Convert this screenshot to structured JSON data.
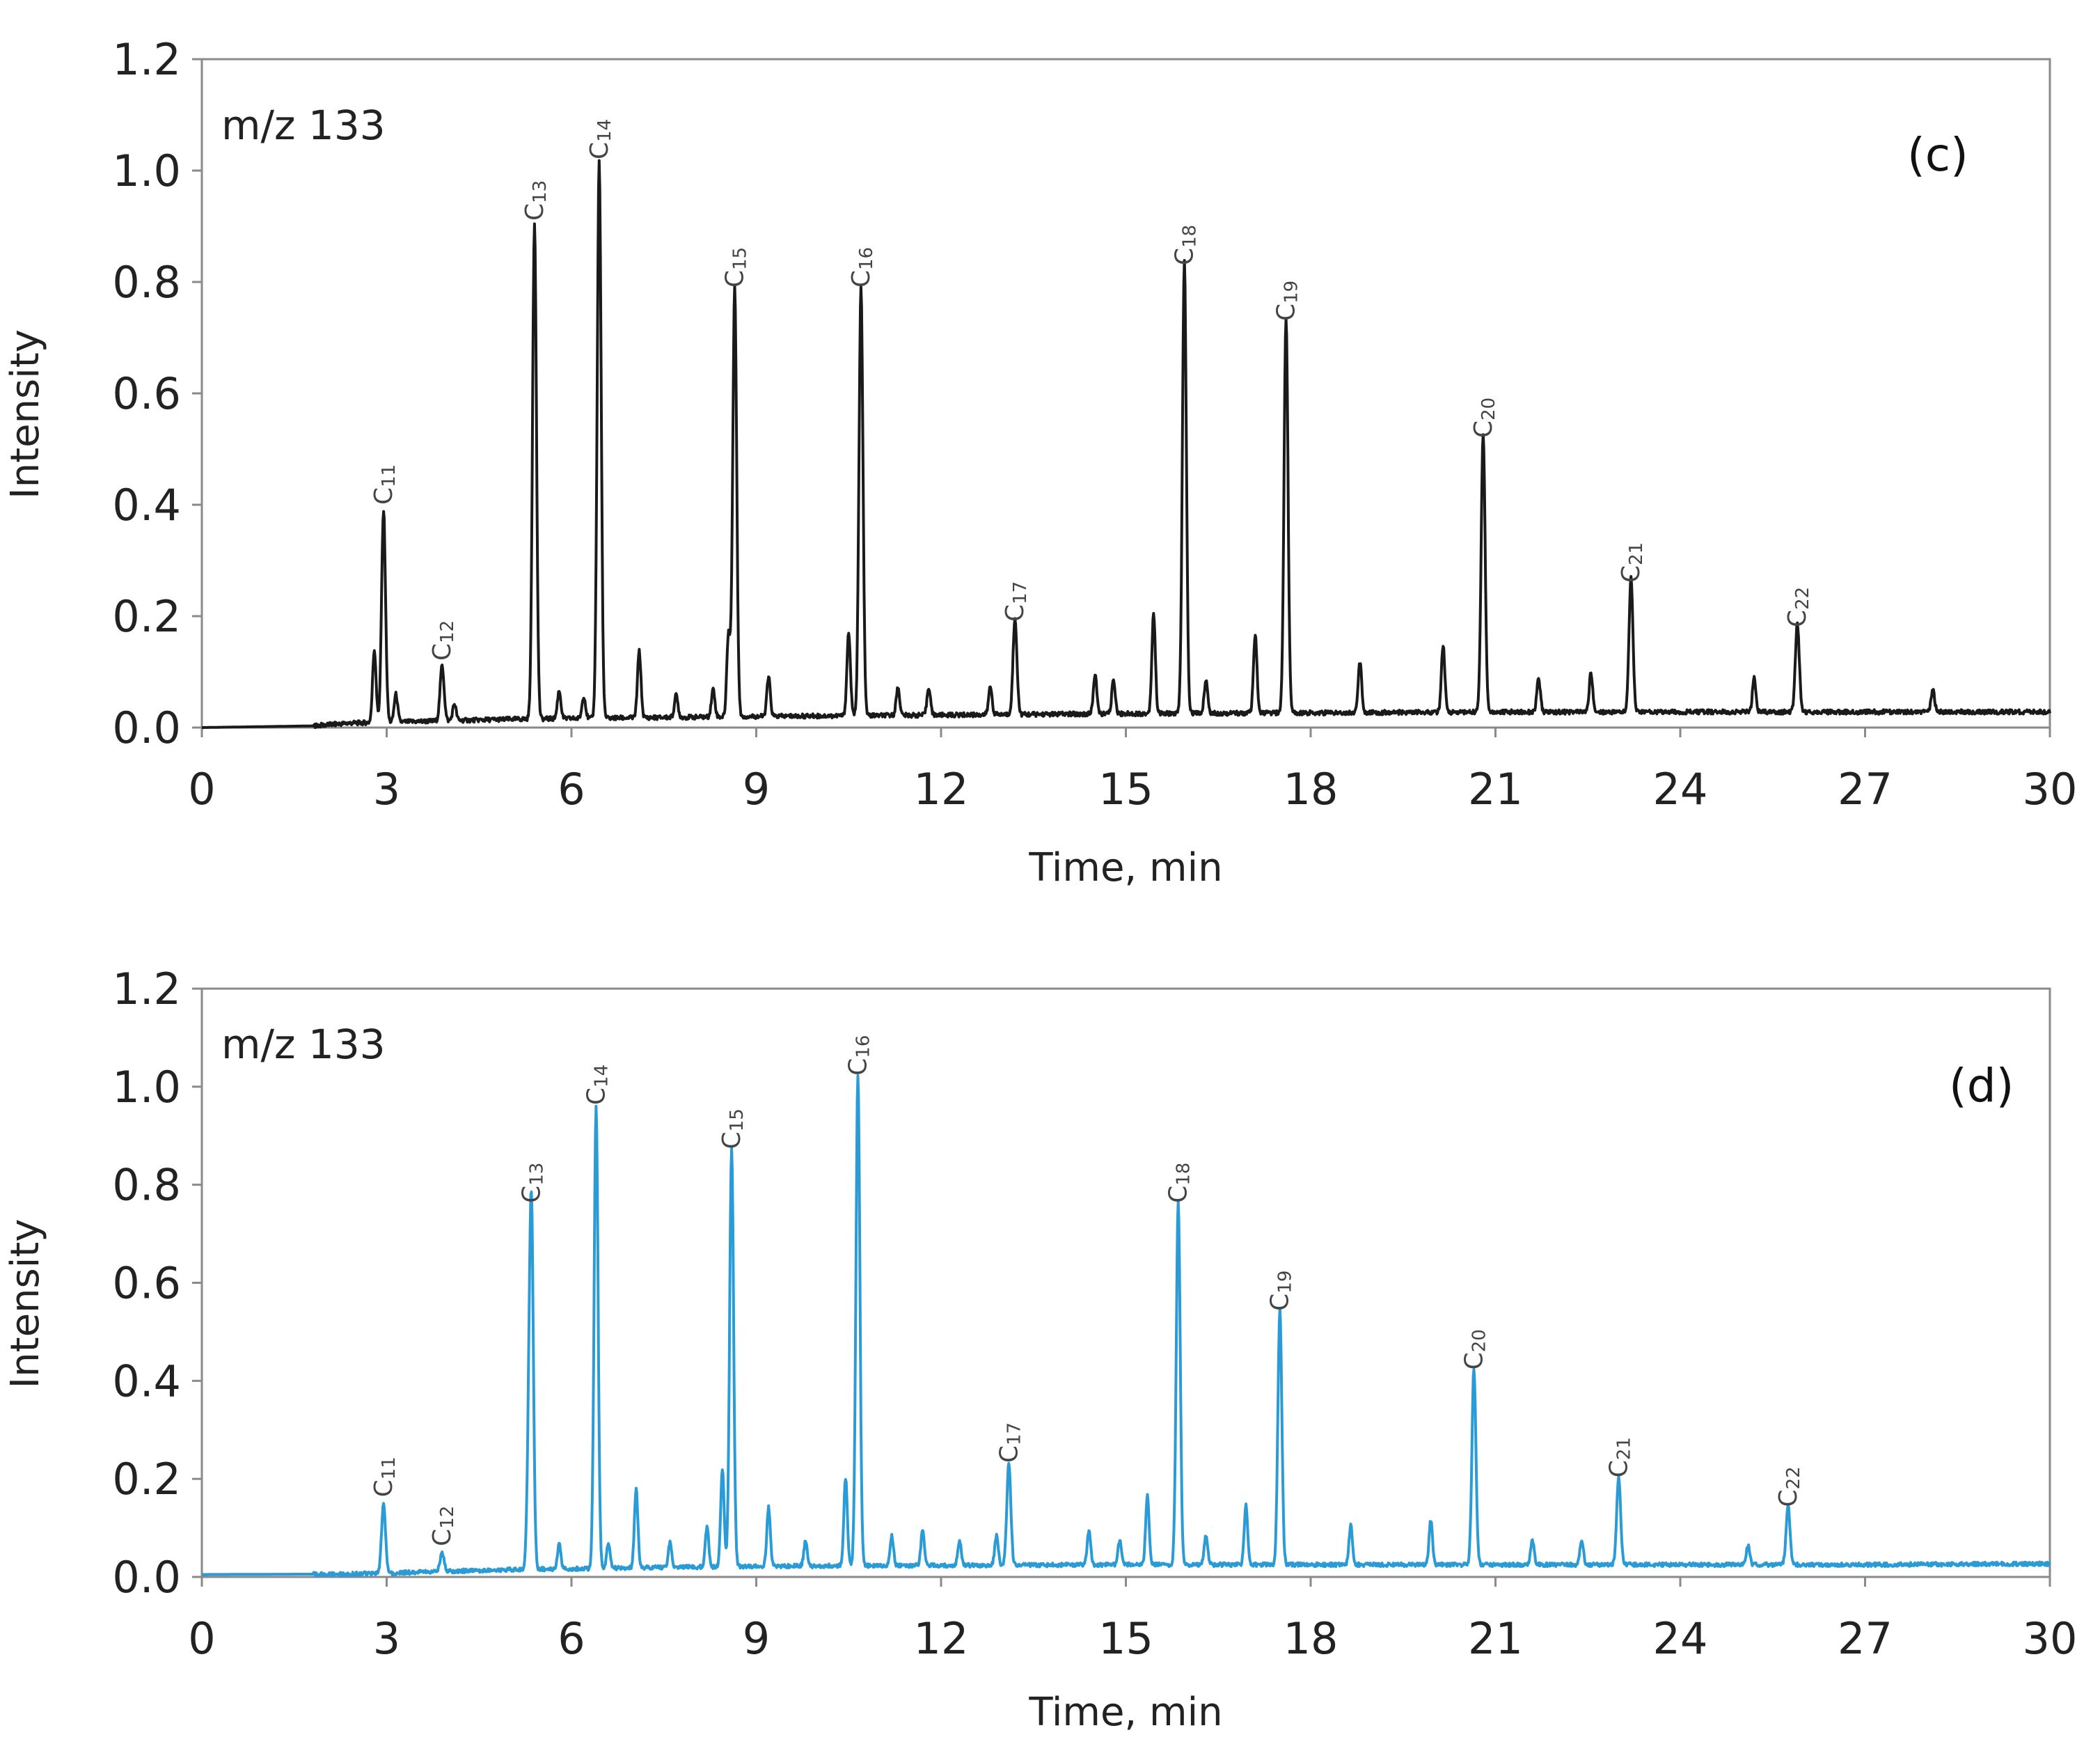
{
  "chart_data": [
    {
      "type": "line",
      "panel_label": "(c)",
      "inset_label": "m/z 133",
      "xlabel": "Time, min",
      "ylabel": "Intensity",
      "xlim": [
        0,
        30
      ],
      "ylim": [
        0,
        1.2
      ],
      "x_ticks": [
        "0",
        "3",
        "6",
        "9",
        "12",
        "15",
        "18",
        "21",
        "24",
        "27",
        "30"
      ],
      "y_ticks": [
        "0.0",
        "0.2",
        "0.4",
        "0.6",
        "0.8",
        "1.0",
        "1.2"
      ],
      "color": "#1a1a1a",
      "baseline": [
        [
          0,
          0
        ],
        [
          1.8,
          0.003
        ],
        [
          2.4,
          0.008
        ],
        [
          5.0,
          0.015
        ],
        [
          9.0,
          0.02
        ],
        [
          15.0,
          0.025
        ],
        [
          21.0,
          0.028
        ],
        [
          27.0,
          0.028
        ],
        [
          30.0,
          0.028
        ]
      ],
      "peaks": [
        {
          "label": "C11",
          "x": 2.95,
          "y": 0.38
        },
        {
          "label": "C12",
          "x": 3.9,
          "y": 0.1
        },
        {
          "label": "C13",
          "x": 5.4,
          "y": 0.89
        },
        {
          "label": "C14",
          "x": 6.45,
          "y": 1.0
        },
        {
          "label": "C15",
          "x": 8.65,
          "y": 0.77
        },
        {
          "label": "C16",
          "x": 10.7,
          "y": 0.77
        },
        {
          "label": "C17",
          "x": 13.2,
          "y": 0.17
        },
        {
          "label": "C18",
          "x": 15.95,
          "y": 0.81
        },
        {
          "label": "C19",
          "x": 17.6,
          "y": 0.71
        },
        {
          "label": "C20",
          "x": 20.8,
          "y": 0.5
        },
        {
          "label": "C21",
          "x": 23.2,
          "y": 0.24
        },
        {
          "label": "C22",
          "x": 25.9,
          "y": 0.16
        }
      ],
      "minor_peaks": [
        [
          2.8,
          0.13
        ],
        [
          3.15,
          0.05
        ],
        [
          4.1,
          0.03
        ],
        [
          5.8,
          0.05
        ],
        [
          6.2,
          0.04
        ],
        [
          7.1,
          0.12
        ],
        [
          7.7,
          0.04
        ],
        [
          8.3,
          0.05
        ],
        [
          8.55,
          0.15
        ],
        [
          9.2,
          0.07
        ],
        [
          10.5,
          0.15
        ],
        [
          11.3,
          0.05
        ],
        [
          11.8,
          0.05
        ],
        [
          12.8,
          0.05
        ],
        [
          14.5,
          0.07
        ],
        [
          14.8,
          0.06
        ],
        [
          15.45,
          0.18
        ],
        [
          16.3,
          0.06
        ],
        [
          17.1,
          0.14
        ],
        [
          18.8,
          0.09
        ],
        [
          20.15,
          0.12
        ],
        [
          21.7,
          0.06
        ],
        [
          22.55,
          0.07
        ],
        [
          25.2,
          0.06
        ],
        [
          28.1,
          0.04
        ]
      ]
    },
    {
      "type": "line",
      "panel_label": "(d)",
      "inset_label": "m/z 133",
      "xlabel": "Time, min",
      "ylabel": "Intensity",
      "xlim": [
        0,
        30
      ],
      "ylim": [
        0,
        1.2
      ],
      "x_ticks": [
        "0",
        "3",
        "6",
        "9",
        "12",
        "15",
        "18",
        "21",
        "24",
        "27",
        "30"
      ],
      "y_ticks": [
        "0.0",
        "0.2",
        "0.4",
        "0.6",
        "0.8",
        "1.0",
        "1.2"
      ],
      "color": "#2b9bd6",
      "baseline": [
        [
          0,
          0.005
        ],
        [
          2.4,
          0.006
        ],
        [
          3.0,
          0.008
        ],
        [
          5.0,
          0.015
        ],
        [
          9.0,
          0.022
        ],
        [
          15.0,
          0.025
        ],
        [
          21.0,
          0.025
        ],
        [
          27.0,
          0.025
        ],
        [
          30.0,
          0.027
        ]
      ],
      "peaks": [
        {
          "label": "C11",
          "x": 2.95,
          "y": 0.14
        },
        {
          "label": "C12",
          "x": 3.9,
          "y": 0.04
        },
        {
          "label": "C13",
          "x": 5.35,
          "y": 0.74
        },
        {
          "label": "C14",
          "x": 6.4,
          "y": 0.94
        },
        {
          "label": "C15",
          "x": 8.6,
          "y": 0.85
        },
        {
          "label": "C16",
          "x": 10.65,
          "y": 1.0
        },
        {
          "label": "C17",
          "x": 13.1,
          "y": 0.21
        },
        {
          "label": "C18",
          "x": 15.85,
          "y": 0.74
        },
        {
          "label": "C19",
          "x": 17.5,
          "y": 0.52
        },
        {
          "label": "C20",
          "x": 20.65,
          "y": 0.4
        },
        {
          "label": "C21",
          "x": 23.0,
          "y": 0.18
        },
        {
          "label": "C22",
          "x": 25.75,
          "y": 0.12
        }
      ],
      "minor_peaks": [
        [
          5.3,
          0.16
        ],
        [
          5.8,
          0.05
        ],
        [
          6.6,
          0.05
        ],
        [
          7.05,
          0.16
        ],
        [
          7.6,
          0.05
        ],
        [
          8.2,
          0.08
        ],
        [
          8.45,
          0.2
        ],
        [
          9.2,
          0.12
        ],
        [
          9.8,
          0.05
        ],
        [
          10.45,
          0.18
        ],
        [
          11.2,
          0.06
        ],
        [
          11.7,
          0.07
        ],
        [
          12.3,
          0.05
        ],
        [
          12.9,
          0.06
        ],
        [
          14.4,
          0.07
        ],
        [
          14.9,
          0.05
        ],
        [
          15.35,
          0.14
        ],
        [
          16.3,
          0.06
        ],
        [
          16.95,
          0.12
        ],
        [
          18.65,
          0.08
        ],
        [
          19.95,
          0.09
        ],
        [
          21.6,
          0.05
        ],
        [
          22.4,
          0.05
        ],
        [
          25.1,
          0.04
        ]
      ]
    }
  ]
}
